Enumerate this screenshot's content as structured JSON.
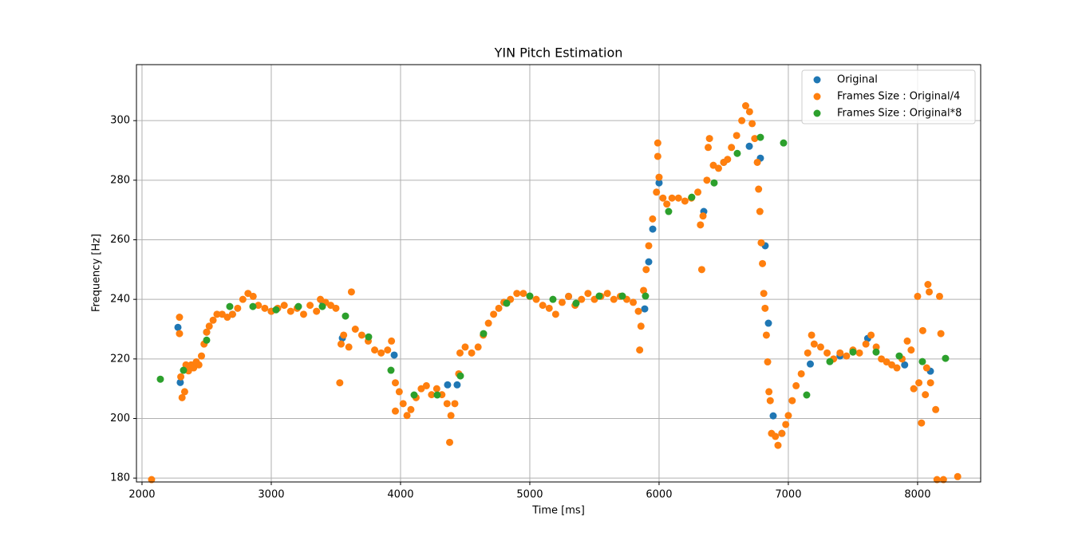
{
  "chart_data": {
    "type": "scatter",
    "title": "YIN Pitch Estimation",
    "x_label": "Time [ms]",
    "y_label": "Frequency [Hz]",
    "xlim": [
      1957,
      8488
    ],
    "ylim": [
      178.7,
      318.8
    ],
    "xticks": [
      2000,
      3000,
      4000,
      5000,
      6000,
      7000,
      8000
    ],
    "yticks": [
      180,
      200,
      220,
      240,
      260,
      280,
      300
    ],
    "grid": true,
    "legend": "upper right",
    "series": [
      {
        "name": "Original",
        "color": "#1f77b4",
        "x": [
          2278,
          2296,
          2500,
          2700,
          3000,
          3400,
          3550,
          3951,
          4364,
          4438,
          4800,
          5300,
          5889,
          5920,
          5951,
          6000,
          6346,
          6500,
          6698,
          6784,
          6821,
          6846,
          6883,
          6950,
          7170,
          7400,
          7614,
          7900,
          8099
        ],
        "values": [
          230.6,
          212.1,
          229,
          235,
          236,
          239,
          227,
          221.3,
          211.3,
          211.3,
          239,
          241,
          236.8,
          252.6,
          263.6,
          279.1,
          269.5,
          286,
          291.4,
          287.4,
          258,
          232,
          200.9,
          195,
          218.3,
          221,
          226.9,
          218,
          215.9
        ]
      },
      {
        "name": "Frames Size : Original/4",
        "color": "#ff7f0e",
        "x": [
          2074,
          2290,
          2290,
          2300,
          2310,
          2330,
          2340,
          2360,
          2380,
          2400,
          2420,
          2440,
          2460,
          2480,
          2500,
          2520,
          2550,
          2580,
          2620,
          2660,
          2700,
          2740,
          2780,
          2820,
          2860,
          2900,
          2950,
          3000,
          3050,
          3100,
          3150,
          3200,
          3250,
          3300,
          3350,
          3380,
          3420,
          3460,
          3500,
          3530,
          3540,
          3560,
          3600,
          3620,
          3650,
          3700,
          3750,
          3800,
          3850,
          3900,
          3930,
          3960,
          3960,
          3990,
          4020,
          4050,
          4080,
          4120,
          4160,
          4200,
          4240,
          4280,
          4320,
          4360,
          4380,
          4390,
          4420,
          4450,
          4460,
          4500,
          4550,
          4600,
          4640,
          4680,
          4720,
          4760,
          4800,
          4850,
          4900,
          4950,
          5000,
          5050,
          5100,
          5150,
          5200,
          5250,
          5300,
          5350,
          5400,
          5450,
          5500,
          5550,
          5600,
          5650,
          5700,
          5750,
          5800,
          5840,
          5850,
          5860,
          5880,
          5900,
          5920,
          5950,
          5980,
          5990,
          5990,
          6000,
          6030,
          6060,
          6100,
          6150,
          6200,
          6250,
          6300,
          6320,
          6330,
          6340,
          6370,
          6380,
          6390,
          6420,
          6460,
          6500,
          6530,
          6560,
          6600,
          6640,
          6670,
          6700,
          6720,
          6740,
          6760,
          6770,
          6780,
          6790,
          6800,
          6810,
          6820,
          6830,
          6840,
          6850,
          6860,
          6870,
          6900,
          6920,
          6950,
          6980,
          7000,
          7030,
          7060,
          7100,
          7150,
          7180,
          7200,
          7250,
          7300,
          7350,
          7400,
          7450,
          7500,
          7550,
          7600,
          7640,
          7680,
          7720,
          7760,
          7800,
          7840,
          7880,
          7920,
          7950,
          7970,
          8000,
          8010,
          8030,
          8040,
          8060,
          8070,
          8080,
          8090,
          8100,
          8140,
          8150,
          8170,
          8180,
          8200,
          8310
        ],
        "values": [
          179.5,
          234,
          228.5,
          214,
          207,
          209,
          218,
          216,
          218,
          217,
          219,
          218,
          221,
          225,
          229,
          231,
          233,
          235,
          235,
          234,
          235,
          237,
          240,
          242,
          241,
          238,
          237,
          236,
          237,
          238,
          236,
          237,
          235,
          238,
          236,
          240,
          239,
          238,
          237,
          212,
          225,
          228,
          224,
          242.5,
          230,
          228,
          226,
          223,
          222,
          223,
          226,
          202.5,
          212,
          209,
          205,
          201,
          203,
          207,
          210,
          211,
          208,
          210,
          208,
          205,
          192,
          201,
          205,
          215,
          222,
          224,
          222,
          224,
          228,
          232,
          235,
          237,
          239,
          240,
          242,
          242,
          241,
          240,
          238,
          237,
          235,
          239,
          241,
          238,
          240,
          242,
          240,
          241,
          242,
          240,
          241,
          240,
          239,
          236,
          223,
          231,
          243,
          250,
          258,
          267,
          276,
          292.5,
          288,
          281,
          274,
          272,
          274,
          274,
          273,
          274,
          276,
          265,
          250,
          268,
          280,
          291,
          294,
          285,
          284,
          286,
          287,
          291,
          295,
          300,
          305,
          303,
          299,
          294,
          286,
          277,
          269.5,
          259,
          252,
          242,
          237,
          228,
          219,
          209,
          206,
          195,
          194,
          191,
          195,
          198,
          201,
          206,
          211,
          215,
          222,
          228,
          225,
          224,
          222,
          220,
          222,
          221,
          223,
          222,
          225,
          228,
          224,
          220,
          219,
          218,
          217,
          220,
          226,
          223,
          210,
          241,
          212,
          198.5,
          229.5,
          208,
          217,
          245,
          242.5,
          212,
          203,
          179.5,
          241,
          228.5,
          179.5,
          180.5
        ]
      },
      {
        "name": "Frames Size : Original*8",
        "color": "#2ca02c",
        "x": [
          2142,
          2321,
          2500,
          2679,
          2858,
          3037,
          3210,
          3395,
          3574,
          3753,
          3926,
          4105,
          4284,
          4463,
          4642,
          4821,
          5000,
          5179,
          5358,
          5537,
          5716,
          5895,
          6074,
          6253,
          6426,
          6605,
          6784,
          6963,
          7142,
          7321,
          7500,
          7679,
          7858,
          8037,
          8216
        ],
        "values": [
          213.2,
          216.2,
          226.3,
          237.6,
          237.6,
          236.5,
          237.6,
          237.6,
          234.4,
          227.4,
          216.2,
          207.9,
          207.9,
          214.3,
          228.5,
          238.7,
          241.1,
          240,
          238.7,
          241.1,
          241.1,
          241.1,
          269.5,
          274.3,
          279.1,
          289,
          294.4,
          292.5,
          207.9,
          219.1,
          222.3,
          222.3,
          221,
          219.1,
          220.2
        ]
      }
    ]
  }
}
